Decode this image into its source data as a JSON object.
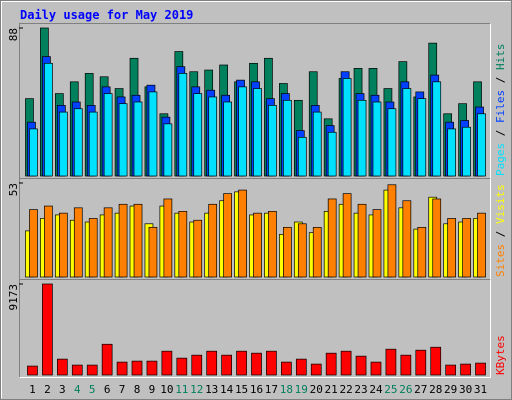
{
  "chart_data": [
    {
      "type": "bar",
      "title": "Daily usage for May 2019",
      "legend_separator": " / ",
      "ylim": [
        0,
        88
      ],
      "yticks": [
        88
      ],
      "series": [
        {
          "name": "Hits",
          "color": "#00805c",
          "values": [
            46,
            88,
            49,
            56,
            61,
            59,
            52,
            70,
            53,
            37,
            74,
            62,
            63,
            66,
            56,
            67,
            70,
            55,
            45,
            62,
            34,
            58,
            64,
            64,
            52,
            68,
            47,
            79,
            37,
            43,
            56
          ]
        },
        {
          "name": "Files",
          "color": "#0040ff",
          "values": [
            32,
            71,
            42,
            44,
            42,
            53,
            47,
            48,
            54,
            35,
            65,
            53,
            51,
            48,
            57,
            56,
            46,
            49,
            27,
            42,
            30,
            62,
            49,
            48,
            44,
            56,
            50,
            60,
            32,
            33,
            41
          ]
        },
        {
          "name": "Pages",
          "color": "#00e0ff",
          "values": [
            28,
            67,
            38,
            40,
            38,
            49,
            43,
            44,
            50,
            31,
            61,
            49,
            47,
            44,
            53,
            52,
            42,
            45,
            23,
            38,
            26,
            58,
            45,
            44,
            40,
            52,
            46,
            56,
            28,
            29,
            37
          ]
        }
      ]
    },
    {
      "type": "bar",
      "legend_separator": " / ",
      "ylim": [
        0,
        53
      ],
      "yticks": [
        53
      ],
      "series": [
        {
          "name": "Visits",
          "color": "#ffff00",
          "values": [
            26,
            33,
            35,
            32,
            31,
            35,
            36,
            40,
            30,
            40,
            36,
            31,
            36,
            43,
            48,
            35,
            36,
            24,
            31,
            25,
            37,
            41,
            36,
            35,
            49,
            39,
            27,
            45,
            30,
            31,
            33
          ]
        },
        {
          "name": "Sites",
          "color": "#ff8000",
          "values": [
            38,
            40,
            36,
            39,
            33,
            39,
            41,
            41,
            28,
            44,
            37,
            32,
            41,
            47,
            49,
            36,
            37,
            28,
            30,
            28,
            44,
            47,
            41,
            38,
            52,
            43,
            28,
            44,
            33,
            33,
            36
          ]
        }
      ]
    },
    {
      "type": "bar",
      "ylim": [
        0,
        9173
      ],
      "yticks": [
        9173
      ],
      "categories": [
        "1",
        "2",
        "3",
        "4",
        "5",
        "6",
        "7",
        "8",
        "9",
        "10",
        "11",
        "12",
        "13",
        "14",
        "15",
        "16",
        "17",
        "18",
        "19",
        "20",
        "21",
        "22",
        "23",
        "24",
        "25",
        "26",
        "27",
        "28",
        "29",
        "30",
        "31"
      ],
      "category_colors": [
        "#000000",
        "#000000",
        "#000000",
        "#00805c",
        "#00805c",
        "#000000",
        "#000000",
        "#000000",
        "#000000",
        "#000000",
        "#00805c",
        "#00805c",
        "#000000",
        "#000000",
        "#000000",
        "#000000",
        "#000000",
        "#00805c",
        "#00805c",
        "#000000",
        "#000000",
        "#000000",
        "#000000",
        "#000000",
        "#00805c",
        "#00805c",
        "#000000",
        "#000000",
        "#000000",
        "#000000",
        "#000000"
      ],
      "series": [
        {
          "name": "KBytes",
          "color": "#ff0000",
          "values": [
            900,
            9173,
            1600,
            1000,
            1000,
            3100,
            1300,
            1400,
            1400,
            2400,
            1700,
            2000,
            2400,
            2000,
            2400,
            2200,
            2400,
            1300,
            1600,
            1100,
            2200,
            2400,
            1900,
            1300,
            2600,
            2000,
            2500,
            2800,
            1000,
            1100,
            1200
          ]
        }
      ]
    }
  ]
}
